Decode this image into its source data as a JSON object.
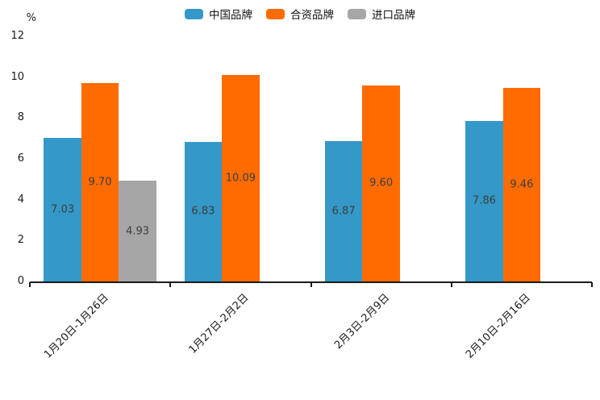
{
  "chart_data": {
    "type": "bar",
    "title": "",
    "ylabel": "%",
    "xlabel": "",
    "categories": [
      "1月20日-1月26日",
      "1月27日-2月2日",
      "2月3日-2月9日",
      "2月10日-2月16日"
    ],
    "series": [
      {
        "name": "中国品牌",
        "color": "#3498c8",
        "values": [
          7.03,
          6.83,
          6.87,
          7.86
        ]
      },
      {
        "name": "合资品牌",
        "color": "#fe6b01",
        "values": [
          9.7,
          10.09,
          9.6,
          9.46
        ]
      },
      {
        "name": "进口品牌",
        "color": "#a6a6a6",
        "values": [
          4.93,
          null,
          null,
          null
        ]
      }
    ],
    "ylim": [
      0,
      12
    ],
    "yticks": [
      0,
      2,
      4,
      6,
      8,
      10,
      12
    ],
    "legend_position": "top",
    "grid": false,
    "value_labels": true,
    "value_label_color": "#3d3d3d",
    "axis_color": "#1a1a1a"
  }
}
